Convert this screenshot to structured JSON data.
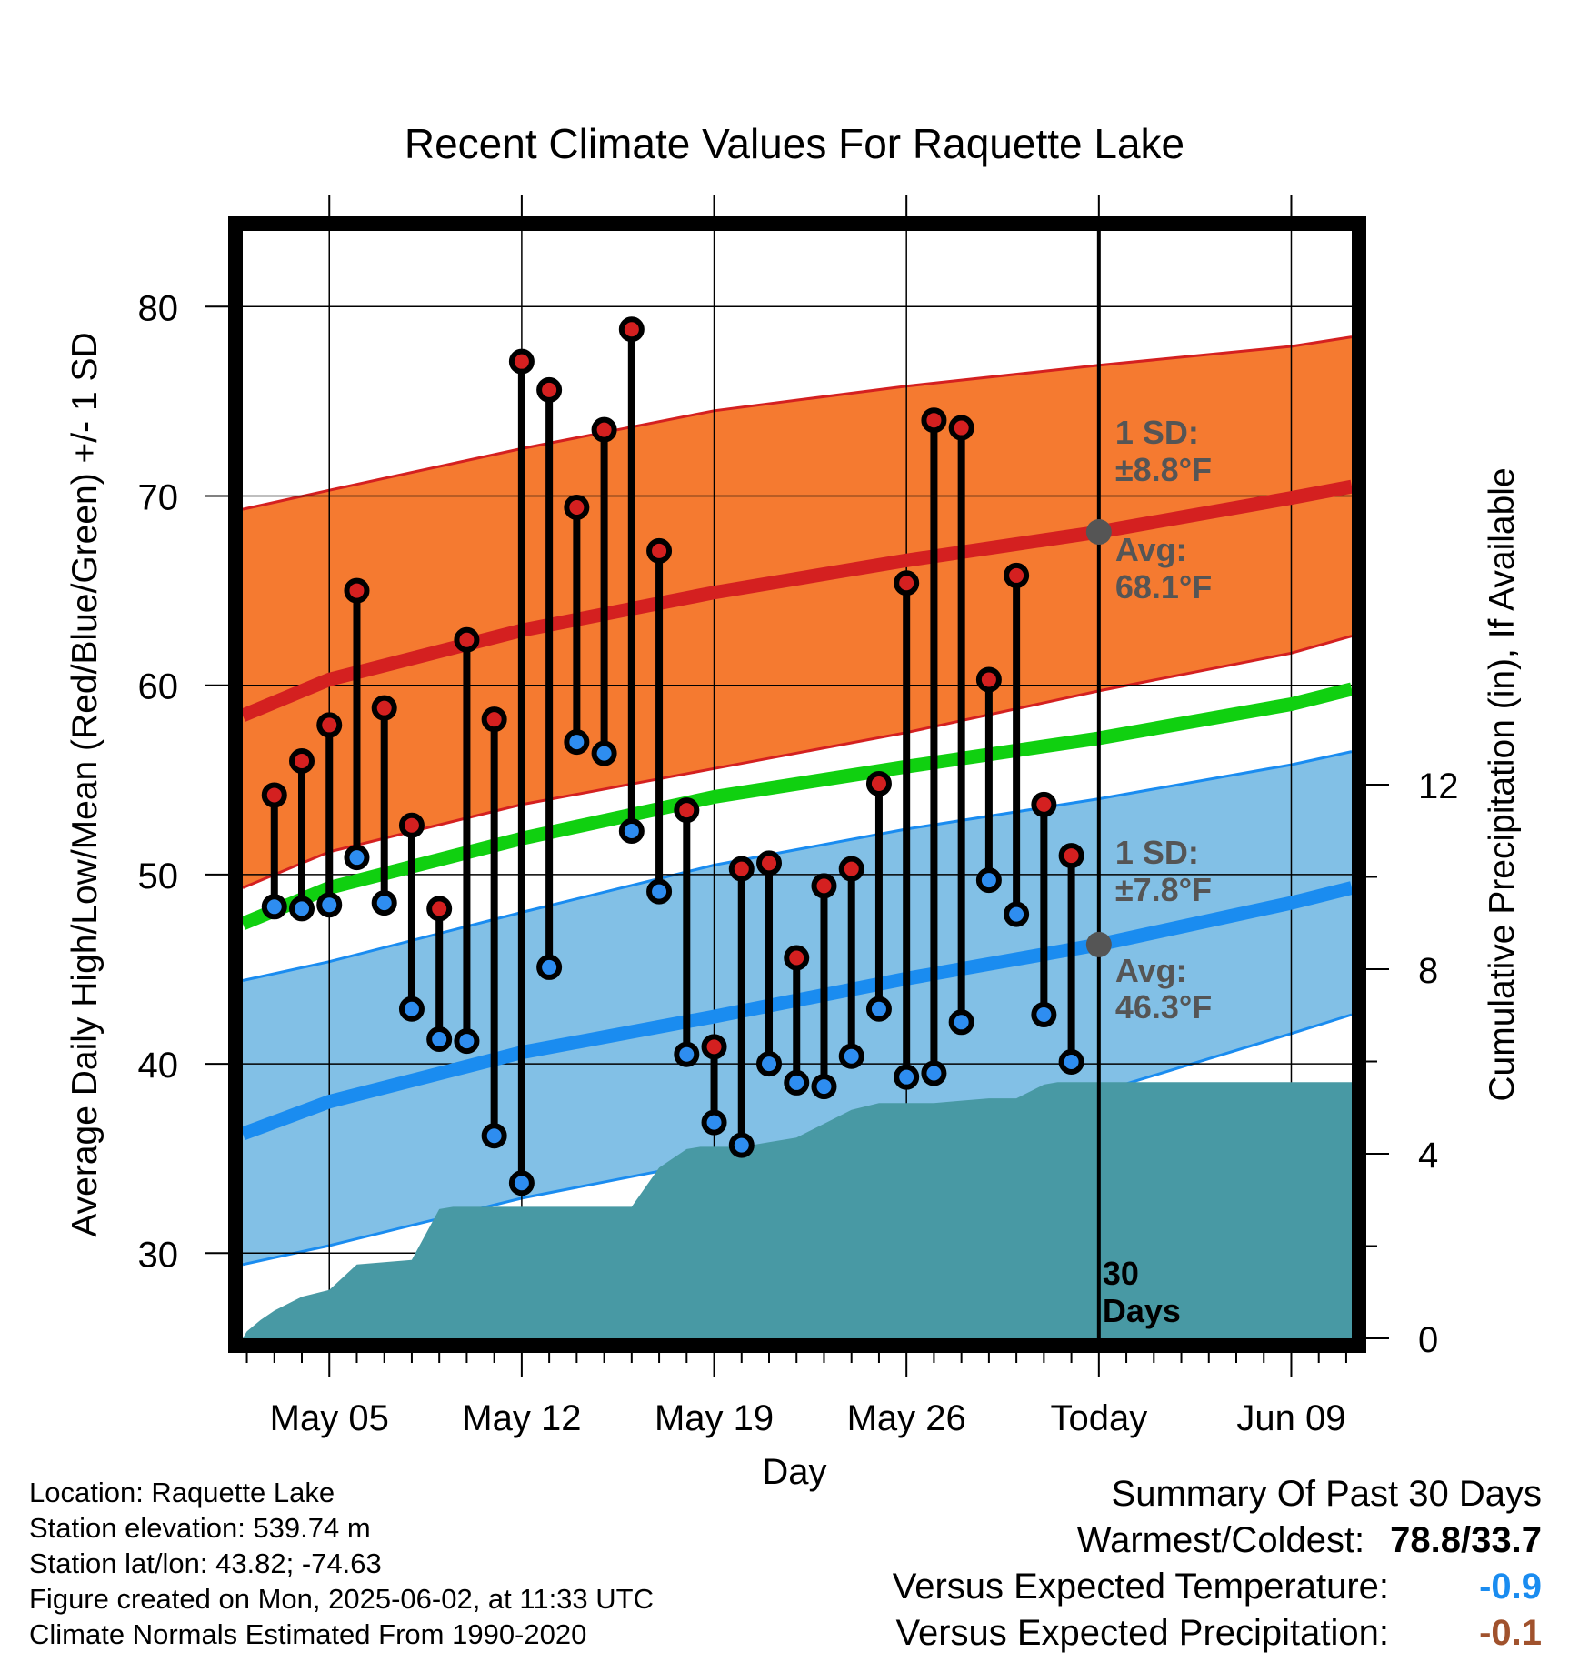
{
  "chart_data": {
    "type": "line",
    "title": "Recent Climate Values For Raquette Lake",
    "xlabel": "Day",
    "ylabel_left": "Average Daily High/Low/Mean (Red/Blue/Green) +/- 1 SD",
    "ylabel_right": "Cumulative Precipitation (in), If Available",
    "temp_range": [
      25.5,
      84
    ],
    "precip_range": [
      0,
      24
    ],
    "temp_ticks": [
      30,
      40,
      50,
      60,
      70,
      80
    ],
    "precip_ticks": [
      0,
      4,
      8,
      12
    ],
    "x_ticks": [
      {
        "day": 4,
        "label": "May 05"
      },
      {
        "day": 11,
        "label": "May 12"
      },
      {
        "day": 18,
        "label": "May 19"
      },
      {
        "day": 25,
        "label": "May 26"
      },
      {
        "day": 32,
        "label": "Today"
      },
      {
        "day": 39,
        "label": "Jun 09"
      }
    ],
    "day_range": [
      0.85,
      41.2
    ],
    "today_day": 32,
    "normals": {
      "days": [
        0.85,
        4,
        11,
        18,
        25,
        32,
        39,
        41.2
      ],
      "avg_high": [
        58.4,
        60.3,
        62.9,
        64.9,
        66.6,
        68.1,
        69.9,
        70.5
      ],
      "high_upper": [
        69.3,
        70.3,
        72.5,
        74.5,
        75.8,
        76.9,
        77.9,
        78.4
      ],
      "high_lower": [
        49.3,
        51.2,
        53.7,
        55.6,
        57.5,
        59.7,
        61.7,
        62.6
      ],
      "avg_mean": [
        47.4,
        49.3,
        51.9,
        54.1,
        55.7,
        57.2,
        59.0,
        59.8
      ],
      "avg_low": [
        36.3,
        38.0,
        40.6,
        42.5,
        44.5,
        46.3,
        48.5,
        49.3
      ],
      "low_upper": [
        44.4,
        45.4,
        48.0,
        50.5,
        52.4,
        54.0,
        55.8,
        56.5
      ],
      "low_lower": [
        29.4,
        30.4,
        32.9,
        34.9,
        36.5,
        38.5,
        41.6,
        42.6
      ]
    },
    "daily": {
      "days": [
        2,
        3,
        4,
        5,
        6,
        7,
        8,
        9,
        10,
        11,
        12,
        13,
        14,
        15,
        16,
        17,
        18,
        19,
        20,
        21,
        22,
        23,
        24,
        25,
        26,
        27,
        28,
        29,
        30,
        31
      ],
      "high": [
        54.2,
        56.0,
        57.9,
        65.0,
        58.8,
        52.6,
        48.2,
        62.4,
        58.2,
        77.1,
        75.6,
        69.4,
        73.5,
        78.8,
        67.1,
        53.4,
        40.9,
        50.3,
        50.6,
        45.6,
        49.4,
        50.3,
        54.8,
        65.4,
        74.0,
        73.6,
        60.3,
        65.8,
        53.7,
        51.0
      ],
      "low": [
        48.3,
        48.2,
        48.4,
        50.9,
        48.5,
        42.9,
        41.3,
        41.2,
        36.2,
        33.7,
        45.1,
        57.0,
        56.4,
        52.3,
        49.1,
        40.5,
        36.9,
        35.7,
        40.0,
        39.0,
        38.8,
        40.4,
        42.9,
        39.3,
        39.5,
        42.2,
        49.7,
        47.9,
        42.6,
        40.1
      ]
    },
    "precip": {
      "days": [
        0.85,
        1,
        1.5,
        2,
        3,
        4,
        5,
        6,
        7,
        8,
        8.5,
        9,
        10,
        11,
        12,
        13,
        14,
        15,
        16,
        17,
        17.5,
        18,
        19,
        20,
        21,
        22,
        23,
        24,
        25,
        26,
        27,
        28,
        29,
        30,
        30.5,
        31,
        32,
        35,
        38,
        41.2
      ],
      "values": [
        0,
        0.15,
        0.4,
        0.6,
        0.9,
        1.05,
        1.6,
        1.65,
        1.7,
        2.8,
        2.85,
        2.85,
        2.85,
        2.85,
        2.85,
        2.85,
        2.85,
        2.85,
        3.7,
        4.1,
        4.15,
        4.15,
        4.15,
        4.25,
        4.35,
        4.65,
        4.95,
        5.1,
        5.1,
        5.1,
        5.15,
        5.2,
        5.2,
        5.5,
        5.55,
        5.55,
        5.55,
        5.55,
        5.55,
        5.55
      ]
    },
    "annotations": {
      "high_sd_label": "1 SD:",
      "high_sd_value": "±8.8°F",
      "high_avg_label": "Avg:",
      "high_avg_value": "68.1°F",
      "high_avg_today": 68.1,
      "low_sd_label": "1 SD:",
      "low_sd_value": "±7.8°F",
      "low_avg_label": "Avg:",
      "low_avg_value": "46.3°F",
      "low_avg_today": 46.3,
      "days_label_1": "30",
      "days_label_2": "Days"
    },
    "colors": {
      "high_band": "#f57a30",
      "high_line": "#d42020",
      "mean_line": "#10d010",
      "low_band": "#82c0e6",
      "low_line": "#1a8cf0",
      "precip": "#4899a4",
      "high_marker": "#d42020",
      "low_marker": "#2e8df0",
      "annotation_text": "#555555",
      "avg_dot": "#555555"
    }
  },
  "info": {
    "location": "Location: Raquette Lake",
    "elevation": "Station elevation: 539.74 m",
    "latlon": "Station lat/lon: 43.82; -74.63",
    "created": "Figure created on Mon, 2025-06-02, at 11:33 UTC",
    "normals": "Climate Normals Estimated From 1990-2020"
  },
  "summary": {
    "title": "Summary Of Past 30 Days",
    "warmest_label": "Warmest/Coldest:",
    "warmest_value": "78.8/33.7",
    "temp_label": "Versus Expected Temperature:",
    "temp_value": "-0.9",
    "temp_color": "#1a8cf0",
    "precip_label": "Versus Expected Precipitation:",
    "precip_value": "-0.1",
    "precip_color": "#a0522d"
  }
}
